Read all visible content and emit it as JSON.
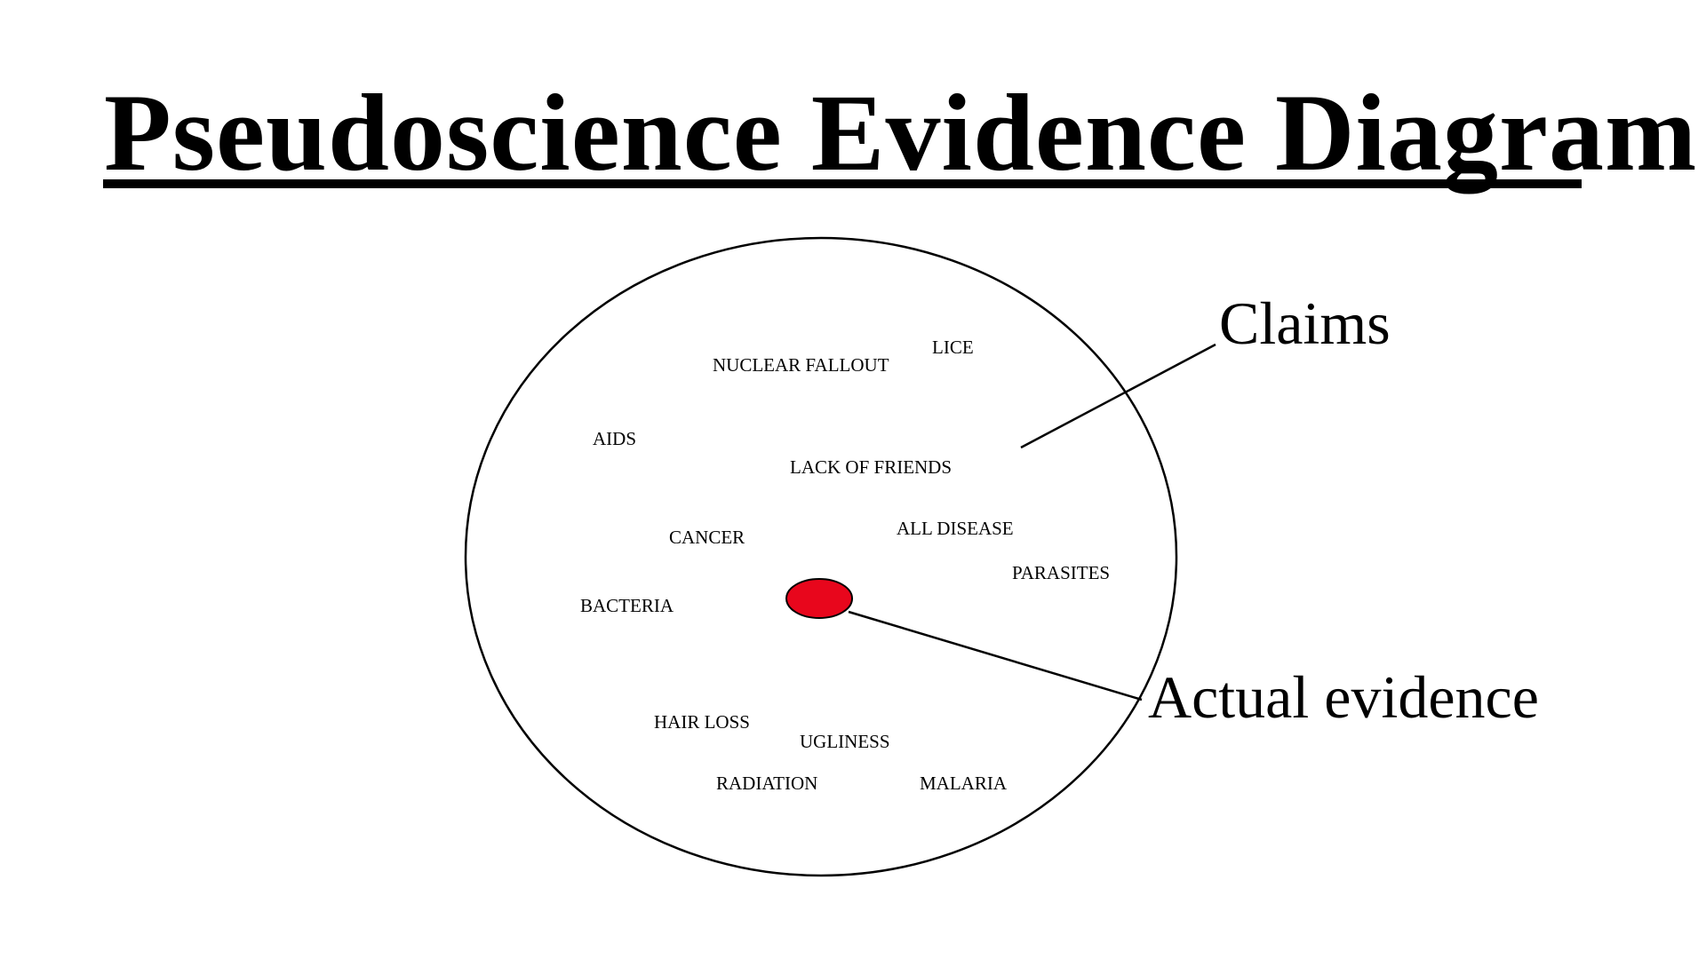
{
  "title": "Pseudoscience Evidence Diagram",
  "colors": {
    "evidence_fill": "#e8061c",
    "outline": "#000000",
    "background": "#ffffff"
  },
  "claims": [
    "NUCLEAR FALLOUT",
    "LICE",
    "AIDS",
    "LACK OF FRIENDS",
    "CANCER",
    "ALL DISEASE",
    "PARASITES",
    "BACTERIA",
    "HAIR LOSS",
    "UGLINESS",
    "RADIATION",
    "MALARIA"
  ],
  "callouts": {
    "claims": "Claims",
    "evidence": "Actual evidence"
  }
}
